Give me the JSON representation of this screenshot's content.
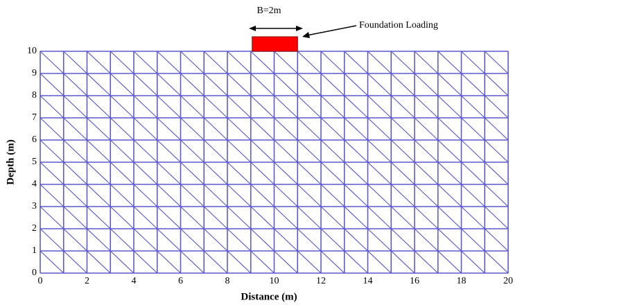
{
  "chart_data": {
    "type": "mesh",
    "xlabel": "Distance (m)",
    "ylabel": "Depth (m)",
    "xlim": [
      0,
      20
    ],
    "ylim": [
      0,
      10
    ],
    "xticks": [
      0,
      2,
      4,
      6,
      8,
      10,
      12,
      14,
      16,
      18,
      20
    ],
    "yticks": [
      0,
      1,
      2,
      3,
      4,
      5,
      6,
      7,
      8,
      9,
      10
    ],
    "mesh_color": "#5a5ad0",
    "foundation": {
      "x": [
        9,
        11
      ],
      "color": "#ff0000"
    },
    "annotations": {
      "width": "B=2m",
      "load": "Foundation Loading"
    }
  }
}
